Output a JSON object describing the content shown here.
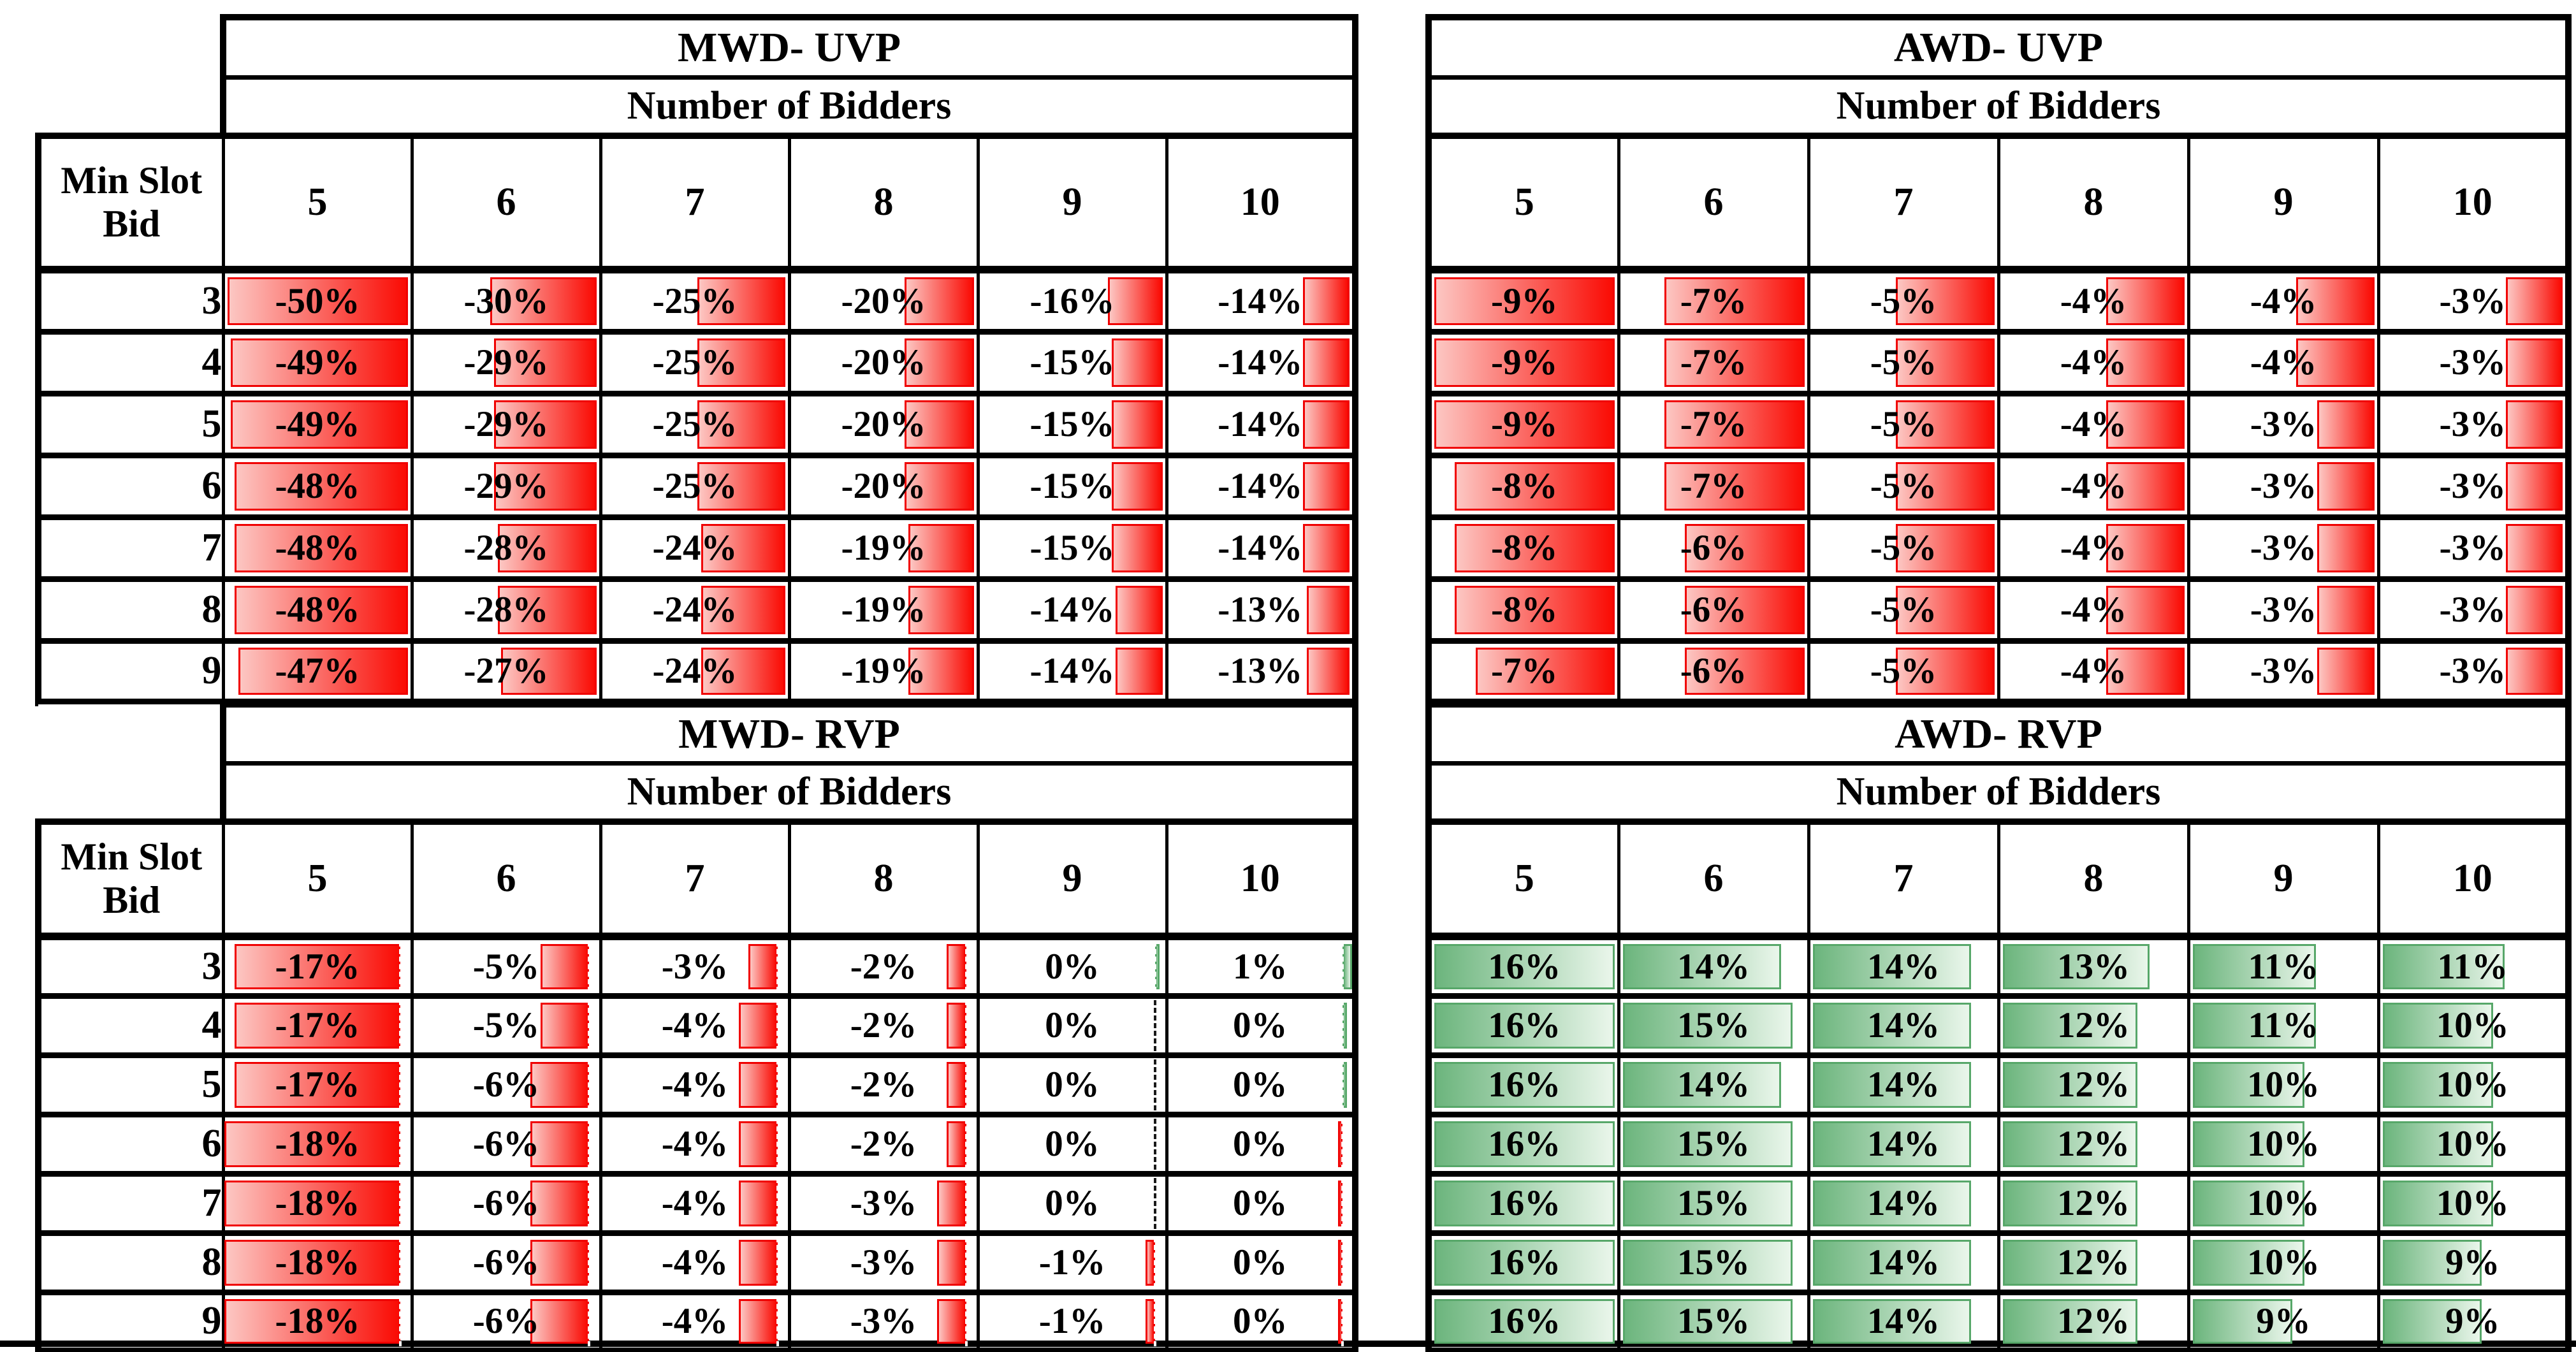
{
  "figure": {
    "background": "#ffffff",
    "row_axis_title": "Min Slot Bid",
    "col_axis_title": "Number of Bidders"
  },
  "colors": {
    "grid": "#000000",
    "negative_bar_solid": "#FA0B04",
    "negative_bar_light": "#FCC7C3",
    "negative_bar_border": "#F00000",
    "positive_bar_solid": "#6CB57D",
    "positive_bar_light": "#EAF6EB",
    "positive_bar_border": "#57A769",
    "axis_dash_on_white": "#1a1a1a",
    "axis_dash_on_bar": "#ffffff"
  },
  "chart_data": [
    {
      "type": "table",
      "position": "top-left",
      "title": "MWD- UVP",
      "subtitle": "Number of Bidders",
      "corner_header": "Min Slot Bid",
      "columns": [
        "5",
        "6",
        "7",
        "8",
        "9",
        "10"
      ],
      "row_labels": [
        "3",
        "4",
        "5",
        "6",
        "7",
        "8",
        "9"
      ],
      "values": [
        [
          -50,
          -30,
          -25,
          -20,
          -16,
          -14
        ],
        [
          -49,
          -29,
          -25,
          -20,
          -15,
          -14
        ],
        [
          -49,
          -29,
          -25,
          -20,
          -15,
          -14
        ],
        [
          -48,
          -29,
          -25,
          -20,
          -15,
          -14
        ],
        [
          -48,
          -28,
          -24,
          -19,
          -15,
          -14
        ],
        [
          -48,
          -28,
          -24,
          -19,
          -14,
          -13
        ],
        [
          -47,
          -27,
          -24,
          -19,
          -14,
          -13
        ]
      ],
      "labels": [
        [
          "-50%",
          "-30%",
          "-25%",
          "-20%",
          "-16%",
          "-14%"
        ],
        [
          "-49%",
          "-29%",
          "-25%",
          "-20%",
          "-15%",
          "-14%"
        ],
        [
          "-49%",
          "-29%",
          "-25%",
          "-20%",
          "-15%",
          "-14%"
        ],
        [
          "-48%",
          "-29%",
          "-25%",
          "-20%",
          "-15%",
          "-14%"
        ],
        [
          "-48%",
          "-28%",
          "-24%",
          "-19%",
          "-15%",
          "-14%"
        ],
        [
          "-48%",
          "-28%",
          "-24%",
          "-19%",
          "-14%",
          "-13%"
        ],
        [
          "-47%",
          "-27%",
          "-24%",
          "-19%",
          "-14%",
          "-13%"
        ]
      ],
      "databar": {
        "span": 50,
        "axis_fraction": 1,
        "show_axis": false,
        "negative": {
          "solid": "#FA0B04",
          "light": "#FCC7C3",
          "border": "#F00000"
        },
        "positive": {
          "solid": "#6CB57D",
          "light": "#EAF6EB",
          "border": "#57A769"
        }
      }
    },
    {
      "type": "table",
      "position": "top-right",
      "title": "AWD- UVP",
      "subtitle": "Number of Bidders",
      "corner_header": null,
      "columns": [
        "5",
        "6",
        "7",
        "8",
        "9",
        "10"
      ],
      "row_labels": [
        "3",
        "4",
        "5",
        "6",
        "7",
        "8",
        "9"
      ],
      "values": [
        [
          -9,
          -7,
          -5,
          -4,
          -4,
          -3
        ],
        [
          -9,
          -7,
          -5,
          -4,
          -4,
          -3
        ],
        [
          -9,
          -7,
          -5,
          -4,
          -3,
          -3
        ],
        [
          -8,
          -7,
          -5,
          -4,
          -3,
          -3
        ],
        [
          -8,
          -6,
          -5,
          -4,
          -3,
          -3
        ],
        [
          -8,
          -6,
          -5,
          -4,
          -3,
          -3
        ],
        [
          -7,
          -6,
          -5,
          -4,
          -3,
          -3
        ]
      ],
      "labels": [
        [
          "-9%",
          "-7%",
          "-5%",
          "-4%",
          "-4%",
          "-3%"
        ],
        [
          "-9%",
          "-7%",
          "-5%",
          "-4%",
          "-4%",
          "-3%"
        ],
        [
          "-9%",
          "-7%",
          "-5%",
          "-4%",
          "-3%",
          "-3%"
        ],
        [
          "-8%",
          "-7%",
          "-5%",
          "-4%",
          "-3%",
          "-3%"
        ],
        [
          "-8%",
          "-6%",
          "-5%",
          "-4%",
          "-3%",
          "-3%"
        ],
        [
          "-8%",
          "-6%",
          "-5%",
          "-4%",
          "-3%",
          "-3%"
        ],
        [
          "-7%",
          "-6%",
          "-5%",
          "-4%",
          "-3%",
          "-3%"
        ]
      ],
      "databar": {
        "span": 9,
        "axis_fraction": 1,
        "show_axis": false,
        "negative": {
          "solid": "#FA0B04",
          "light": "#FCC7C3",
          "border": "#F00000"
        },
        "positive": {
          "solid": "#6CB57D",
          "light": "#EAF6EB",
          "border": "#57A769"
        }
      }
    },
    {
      "type": "table",
      "position": "bottom-left",
      "title": "MWD- RVP",
      "subtitle": "Number of Bidders",
      "corner_header": "Min Slot Bid",
      "columns": [
        "5",
        "6",
        "7",
        "8",
        "9",
        "10"
      ],
      "row_labels": [
        "3",
        "4",
        "5",
        "6",
        "7",
        "8",
        "9"
      ],
      "values": [
        [
          -17,
          -5,
          -3,
          -2,
          0.3,
          1
        ],
        [
          -17,
          -5,
          -4,
          -2,
          0,
          0.3
        ],
        [
          -17,
          -6,
          -4,
          -2,
          0,
          0.2
        ],
        [
          -18,
          -6,
          -4,
          -2,
          0,
          -0.2
        ],
        [
          -18,
          -6,
          -4,
          -3,
          0,
          -0.2
        ],
        [
          -18,
          -6,
          -4,
          -3,
          -1,
          -0.3
        ],
        [
          -18,
          -6,
          -4,
          -3,
          -1,
          -0.3
        ]
      ],
      "labels": [
        [
          "-17%",
          "-5%",
          "-3%",
          "-2%",
          "0%",
          "1%"
        ],
        [
          "-17%",
          "-5%",
          "-4%",
          "-2%",
          "0%",
          "0%"
        ],
        [
          "-17%",
          "-6%",
          "-4%",
          "-2%",
          "0%",
          "0%"
        ],
        [
          "-18%",
          "-6%",
          "-4%",
          "-2%",
          "0%",
          "0%"
        ],
        [
          "-18%",
          "-6%",
          "-4%",
          "-3%",
          "0%",
          "0%"
        ],
        [
          "-18%",
          "-6%",
          "-4%",
          "-3%",
          "-1%",
          "0%"
        ],
        [
          "-18%",
          "-6%",
          "-4%",
          "-3%",
          "-1%",
          "0%"
        ]
      ],
      "databar": {
        "span": 19,
        "axis_fraction": 0.947,
        "show_axis": true,
        "negative": {
          "solid": "#FA0B04",
          "light": "#FCC7C3",
          "border": "#F00000"
        },
        "positive": {
          "solid": "#6CB57D",
          "light": "#EAF6EB",
          "border": "#57A769"
        }
      }
    },
    {
      "type": "table",
      "position": "bottom-right",
      "title": "AWD- RVP",
      "subtitle": "Number of Bidders",
      "corner_header": null,
      "columns": [
        "5",
        "6",
        "7",
        "8",
        "9",
        "10"
      ],
      "row_labels": [
        "3",
        "4",
        "5",
        "6",
        "7",
        "8",
        "9"
      ],
      "values": [
        [
          16,
          14,
          14,
          13,
          11,
          11
        ],
        [
          16,
          15,
          14,
          12,
          11,
          10
        ],
        [
          16,
          14,
          14,
          12,
          10,
          10
        ],
        [
          16,
          15,
          14,
          12,
          10,
          10
        ],
        [
          16,
          15,
          14,
          12,
          10,
          10
        ],
        [
          16,
          15,
          14,
          12,
          10,
          9
        ],
        [
          16,
          15,
          14,
          12,
          9,
          9
        ]
      ],
      "labels": [
        [
          "16%",
          "14%",
          "14%",
          "13%",
          "11%",
          "11%"
        ],
        [
          "16%",
          "15%",
          "14%",
          "12%",
          "11%",
          "10%"
        ],
        [
          "16%",
          "14%",
          "14%",
          "12%",
          "10%",
          "10%"
        ],
        [
          "16%",
          "15%",
          "14%",
          "12%",
          "10%",
          "10%"
        ],
        [
          "16%",
          "15%",
          "14%",
          "12%",
          "10%",
          "10%"
        ],
        [
          "16%",
          "15%",
          "14%",
          "12%",
          "10%",
          "9%"
        ],
        [
          "16%",
          "15%",
          "14%",
          "12%",
          "9%",
          "9%"
        ]
      ],
      "databar": {
        "span": 16,
        "axis_fraction": 0,
        "show_axis": false,
        "negative": {
          "solid": "#FA0B04",
          "light": "#FCC7C3",
          "border": "#F00000"
        },
        "positive": {
          "solid": "#6CB57D",
          "light": "#EAF6EB",
          "border": "#57A769"
        }
      }
    }
  ]
}
